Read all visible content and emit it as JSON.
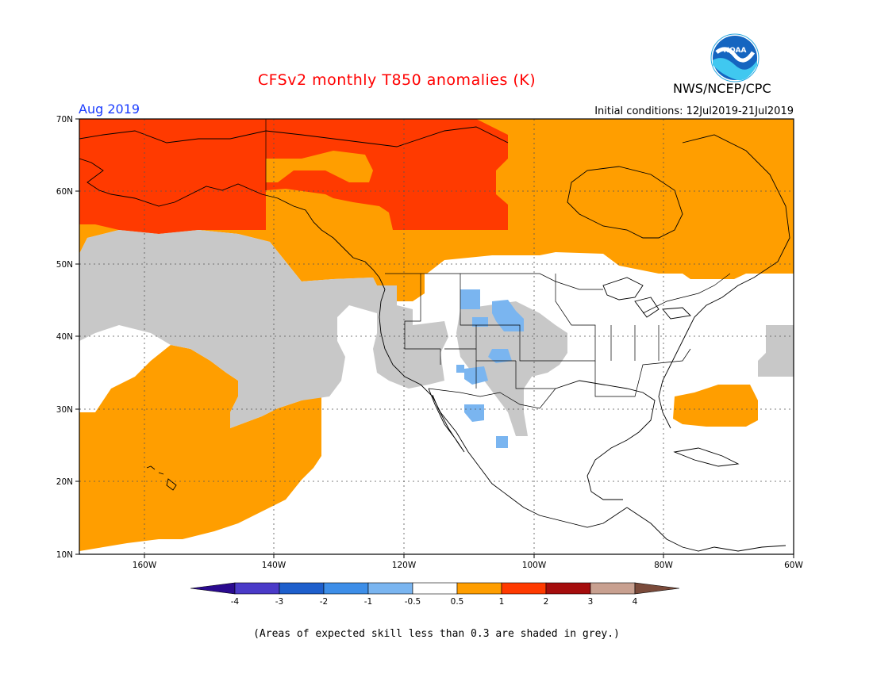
{
  "header": {
    "title": "CFSv2 monthly T850 anomalies (K)",
    "month": "Aug 2019",
    "initial_conditions": "Initial conditions: 12Jul2019-21Jul2019",
    "organization": "NWS/NCEP/CPC",
    "logo_text": "NOAA"
  },
  "map": {
    "lat_labels": [
      "70N",
      "60N",
      "50N",
      "40N",
      "30N",
      "20N",
      "10N"
    ],
    "lon_labels": [
      "160W",
      "140W",
      "120W",
      "100W",
      "80W",
      "60W"
    ],
    "extent": {
      "lon": [
        -170,
        -60
      ],
      "lat": [
        10,
        70
      ]
    }
  },
  "colorbar": {
    "labels": [
      "-4",
      "-3",
      "-2",
      "-1",
      "-0.5",
      "0.5",
      "1",
      "2",
      "3",
      "4"
    ],
    "colors": [
      "#2a0a8f",
      "#4a3ac8",
      "#1e5fcc",
      "#3d8ee8",
      "#7ab5f0",
      "#ffffff",
      "#ff9e00",
      "#ff3a00",
      "#a50d0d",
      "#c8a090",
      "#7a4a3a"
    ],
    "skill_grey": "#c8c8c8"
  },
  "footnote": "(Areas of expected skill less than 0.3 are shaded in grey.)"
}
